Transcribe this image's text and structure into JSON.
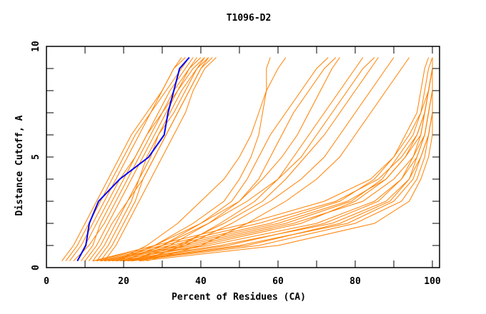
{
  "chart_data": {
    "type": "line",
    "title": "T1096-D2",
    "xlabel": "Percent of Residues (CA)",
    "ylabel": "Distance Cutoff, A",
    "xlim": [
      0,
      100
    ],
    "ylim": [
      0,
      10
    ],
    "xticks": [
      "0",
      "20",
      "40",
      "60",
      "80",
      "100"
    ],
    "yticks": [
      "0",
      "5",
      "10"
    ],
    "grid": false,
    "colors": {
      "models": "#ff8000",
      "highlight": "#0000ff",
      "axes": "#000000"
    },
    "y_levels": [
      0.3,
      1,
      2,
      3,
      4,
      5,
      6,
      7,
      8,
      9,
      9.5
    ],
    "highlight_series": [
      8,
      10.2,
      11.1,
      13.5,
      19,
      26.5,
      30.5,
      31.5,
      33,
      34.5,
      37
    ],
    "series": [
      [
        6,
        9,
        12,
        15,
        18,
        21,
        24,
        27,
        30,
        33,
        35
      ],
      [
        8,
        10,
        13,
        16,
        19,
        23,
        26,
        29,
        32,
        36,
        38
      ],
      [
        7,
        11,
        15,
        18,
        21,
        24,
        27,
        30,
        33,
        37,
        40
      ],
      [
        10,
        13,
        16,
        19,
        22,
        25,
        28,
        31,
        34,
        38,
        41
      ],
      [
        12,
        15,
        18,
        21,
        24,
        27,
        29,
        32,
        35,
        39,
        42
      ],
      [
        9,
        12,
        14,
        17,
        20,
        23,
        26,
        30,
        34,
        37,
        39
      ],
      [
        14,
        17,
        20,
        23,
        25,
        28,
        31,
        34,
        37,
        40,
        42
      ],
      [
        5,
        8,
        11,
        14,
        17,
        20,
        23,
        27,
        31,
        35,
        37
      ],
      [
        11,
        14,
        17,
        21,
        25,
        28,
        31,
        34,
        37,
        40,
        43
      ],
      [
        13,
        16,
        19,
        22,
        24,
        26,
        29,
        33,
        36,
        39,
        41
      ],
      [
        4,
        7,
        10,
        13,
        16,
        19,
        22,
        26,
        30,
        33,
        36
      ],
      [
        15,
        18,
        21,
        24,
        27,
        30,
        33,
        36,
        38,
        41,
        44
      ],
      [
        18,
        26,
        34,
        40,
        46,
        50,
        53,
        55,
        57,
        60,
        62
      ],
      [
        20,
        30,
        40,
        48,
        52,
        55,
        58,
        62,
        66,
        70,
        73
      ],
      [
        22,
        32,
        42,
        50,
        55,
        58,
        61,
        64,
        68,
        72,
        75
      ],
      [
        25,
        35,
        45,
        54,
        60,
        64,
        68,
        72,
        76,
        80,
        82
      ],
      [
        18,
        28,
        38,
        46,
        50,
        53,
        55,
        56,
        57,
        57,
        58
      ],
      [
        20,
        30,
        42,
        52,
        60,
        66,
        70,
        74,
        78,
        82,
        85
      ],
      [
        24,
        36,
        48,
        58,
        66,
        72,
        76,
        80,
        84,
        88,
        90
      ],
      [
        26,
        40,
        52,
        62,
        70,
        76,
        80,
        84,
        88,
        92,
        94
      ],
      [
        22,
        34,
        46,
        56,
        62,
        67,
        72,
        76,
        80,
        84,
        86
      ],
      [
        18,
        28,
        40,
        50,
        56,
        61,
        65,
        68,
        71,
        74,
        76
      ],
      [
        12,
        30,
        55,
        75,
        86,
        92,
        96,
        98,
        99,
        100,
        100
      ],
      [
        14,
        34,
        60,
        78,
        88,
        93,
        97,
        98,
        99,
        100,
        100
      ],
      [
        15,
        38,
        64,
        82,
        90,
        95,
        98,
        99,
        100,
        100,
        100
      ],
      [
        16,
        42,
        70,
        85,
        92,
        96,
        98,
        99,
        100,
        100,
        100
      ],
      [
        18,
        45,
        74,
        88,
        94,
        97,
        99,
        100,
        100,
        100,
        100
      ],
      [
        20,
        50,
        78,
        90,
        95,
        97,
        99,
        100,
        100,
        100,
        100
      ],
      [
        13,
        32,
        58,
        76,
        85,
        90,
        94,
        97,
        98,
        99,
        100
      ],
      [
        22,
        55,
        80,
        92,
        96,
        98,
        99,
        100,
        100,
        100,
        100
      ],
      [
        17,
        40,
        66,
        80,
        88,
        93,
        96,
        98,
        99,
        100,
        100
      ],
      [
        24,
        60,
        85,
        94,
        97,
        99,
        100,
        100,
        100,
        100,
        100
      ],
      [
        14,
        36,
        62,
        79,
        87,
        91,
        95,
        97,
        99,
        100,
        100
      ],
      [
        19,
        47,
        72,
        86,
        92,
        95,
        97,
        98,
        99,
        100,
        100
      ],
      [
        12,
        28,
        52,
        72,
        84,
        90,
        93,
        96,
        97,
        98,
        99
      ],
      [
        21,
        52,
        76,
        89,
        94,
        96,
        98,
        99,
        100,
        100,
        100
      ]
    ]
  }
}
